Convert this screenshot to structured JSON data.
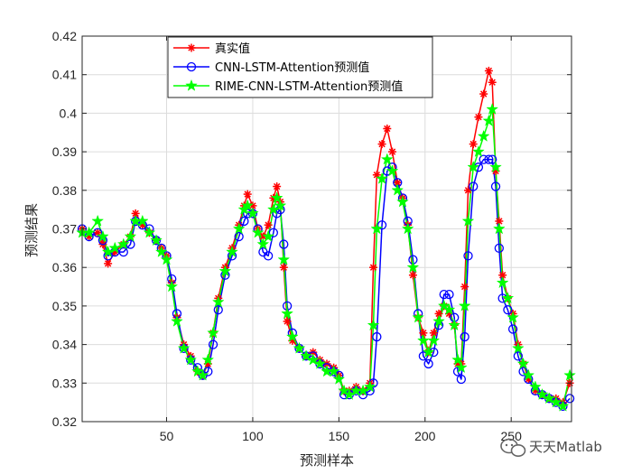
{
  "chart_data": {
    "type": "line",
    "title": "",
    "xlabel": "预测样本",
    "ylabel": "预测结果",
    "xlim": [
      1,
      285
    ],
    "ylim": [
      0.32,
      0.42
    ],
    "xticks": [
      50,
      100,
      150,
      200,
      250
    ],
    "yticks": [
      0.32,
      0.33,
      0.34,
      0.35,
      0.36,
      0.37,
      0.38,
      0.39,
      0.4,
      0.41,
      0.42
    ],
    "grid": true,
    "legend_position": "top-center",
    "series": [
      {
        "name": "真实值",
        "color": "#ff0000",
        "marker": "asterisk",
        "points": [
          [
            1,
            0.37
          ],
          [
            5,
            0.368
          ],
          [
            10,
            0.369
          ],
          [
            13,
            0.366
          ],
          [
            16,
            0.361
          ],
          [
            20,
            0.364
          ],
          [
            25,
            0.366
          ],
          [
            29,
            0.368
          ],
          [
            32,
            0.374
          ],
          [
            36,
            0.371
          ],
          [
            40,
            0.369
          ],
          [
            44,
            0.367
          ],
          [
            47,
            0.365
          ],
          [
            50,
            0.363
          ],
          [
            53,
            0.356
          ],
          [
            56,
            0.347
          ],
          [
            60,
            0.34
          ],
          [
            64,
            0.337
          ],
          [
            68,
            0.333
          ],
          [
            71,
            0.332
          ],
          [
            74,
            0.335
          ],
          [
            77,
            0.343
          ],
          [
            80,
            0.352
          ],
          [
            84,
            0.36
          ],
          [
            88,
            0.365
          ],
          [
            92,
            0.371
          ],
          [
            95,
            0.376
          ],
          [
            97,
            0.379
          ],
          [
            100,
            0.376
          ],
          [
            103,
            0.37
          ],
          [
            106,
            0.368
          ],
          [
            109,
            0.371
          ],
          [
            112,
            0.378
          ],
          [
            114,
            0.381
          ],
          [
            116,
            0.377
          ],
          [
            118,
            0.36
          ],
          [
            120,
            0.346
          ],
          [
            123,
            0.341
          ],
          [
            127,
            0.339
          ],
          [
            131,
            0.337
          ],
          [
            135,
            0.338
          ],
          [
            139,
            0.336
          ],
          [
            143,
            0.335
          ],
          [
            147,
            0.334
          ],
          [
            150,
            0.332
          ],
          [
            153,
            0.328
          ],
          [
            156,
            0.328
          ],
          [
            160,
            0.329
          ],
          [
            164,
            0.328
          ],
          [
            168,
            0.33
          ],
          [
            170,
            0.36
          ],
          [
            172,
            0.384
          ],
          [
            175,
            0.392
          ],
          [
            178,
            0.396
          ],
          [
            181,
            0.39
          ],
          [
            184,
            0.382
          ],
          [
            187,
            0.378
          ],
          [
            190,
            0.371
          ],
          [
            193,
            0.358
          ],
          [
            196,
            0.347
          ],
          [
            199,
            0.343
          ],
          [
            202,
            0.338
          ],
          [
            205,
            0.343
          ],
          [
            208,
            0.348
          ],
          [
            211,
            0.35
          ],
          [
            214,
            0.348
          ],
          [
            217,
            0.345
          ],
          [
            219,
            0.335
          ],
          [
            221,
            0.335
          ],
          [
            223,
            0.355
          ],
          [
            225,
            0.38
          ],
          [
            228,
            0.392
          ],
          [
            231,
            0.399
          ],
          [
            234,
            0.405
          ],
          [
            237,
            0.411
          ],
          [
            239,
            0.408
          ],
          [
            241,
            0.385
          ],
          [
            243,
            0.372
          ],
          [
            245,
            0.358
          ],
          [
            248,
            0.352
          ],
          [
            251,
            0.348
          ],
          [
            254,
            0.34
          ],
          [
            257,
            0.335
          ],
          [
            260,
            0.331
          ],
          [
            264,
            0.328
          ],
          [
            268,
            0.327
          ],
          [
            272,
            0.326
          ],
          [
            276,
            0.326
          ],
          [
            280,
            0.325
          ],
          [
            284,
            0.33
          ]
        ]
      },
      {
        "name": "CNN-LSTM-Attention预测值",
        "color": "#0000ff",
        "marker": "circle",
        "points": [
          [
            1,
            0.37
          ],
          [
            5,
            0.368
          ],
          [
            10,
            0.369
          ],
          [
            13,
            0.367
          ],
          [
            16,
            0.363
          ],
          [
            20,
            0.364
          ],
          [
            25,
            0.364
          ],
          [
            29,
            0.366
          ],
          [
            32,
            0.372
          ],
          [
            36,
            0.371
          ],
          [
            40,
            0.37
          ],
          [
            44,
            0.367
          ],
          [
            47,
            0.365
          ],
          [
            50,
            0.363
          ],
          [
            53,
            0.357
          ],
          [
            56,
            0.348
          ],
          [
            60,
            0.339
          ],
          [
            64,
            0.336
          ],
          [
            68,
            0.334
          ],
          [
            71,
            0.332
          ],
          [
            74,
            0.333
          ],
          [
            77,
            0.34
          ],
          [
            80,
            0.349
          ],
          [
            84,
            0.358
          ],
          [
            88,
            0.363
          ],
          [
            92,
            0.368
          ],
          [
            95,
            0.372
          ],
          [
            97,
            0.374
          ],
          [
            100,
            0.374
          ],
          [
            103,
            0.37
          ],
          [
            106,
            0.364
          ],
          [
            109,
            0.363
          ],
          [
            112,
            0.369
          ],
          [
            114,
            0.374
          ],
          [
            116,
            0.375
          ],
          [
            118,
            0.366
          ],
          [
            120,
            0.35
          ],
          [
            123,
            0.343
          ],
          [
            127,
            0.339
          ],
          [
            131,
            0.337
          ],
          [
            135,
            0.337
          ],
          [
            139,
            0.335
          ],
          [
            143,
            0.334
          ],
          [
            147,
            0.333
          ],
          [
            150,
            0.332
          ],
          [
            153,
            0.327
          ],
          [
            156,
            0.327
          ],
          [
            160,
            0.328
          ],
          [
            164,
            0.327
          ],
          [
            168,
            0.328
          ],
          [
            170,
            0.33
          ],
          [
            172,
            0.342
          ],
          [
            175,
            0.371
          ],
          [
            178,
            0.385
          ],
          [
            181,
            0.386
          ],
          [
            184,
            0.382
          ],
          [
            187,
            0.378
          ],
          [
            190,
            0.372
          ],
          [
            193,
            0.362
          ],
          [
            196,
            0.348
          ],
          [
            199,
            0.337
          ],
          [
            202,
            0.335
          ],
          [
            205,
            0.338
          ],
          [
            208,
            0.345
          ],
          [
            211,
            0.353
          ],
          [
            214,
            0.353
          ],
          [
            217,
            0.347
          ],
          [
            219,
            0.333
          ],
          [
            221,
            0.331
          ],
          [
            223,
            0.342
          ],
          [
            225,
            0.363
          ],
          [
            228,
            0.381
          ],
          [
            231,
            0.386
          ],
          [
            234,
            0.388
          ],
          [
            237,
            0.388
          ],
          [
            239,
            0.388
          ],
          [
            241,
            0.381
          ],
          [
            243,
            0.365
          ],
          [
            245,
            0.352
          ],
          [
            248,
            0.349
          ],
          [
            251,
            0.344
          ],
          [
            254,
            0.337
          ],
          [
            257,
            0.333
          ],
          [
            260,
            0.331
          ],
          [
            264,
            0.328
          ],
          [
            268,
            0.327
          ],
          [
            272,
            0.326
          ],
          [
            276,
            0.325
          ],
          [
            280,
            0.324
          ],
          [
            284,
            0.326
          ]
        ]
      },
      {
        "name": "RIME-CNN-LSTM-Attention预测值",
        "color": "#00ff00",
        "marker": "star",
        "points": [
          [
            1,
            0.369
          ],
          [
            5,
            0.369
          ],
          [
            10,
            0.372
          ],
          [
            13,
            0.368
          ],
          [
            16,
            0.364
          ],
          [
            20,
            0.365
          ],
          [
            25,
            0.366
          ],
          [
            29,
            0.368
          ],
          [
            32,
            0.372
          ],
          [
            36,
            0.372
          ],
          [
            40,
            0.369
          ],
          [
            44,
            0.367
          ],
          [
            47,
            0.364
          ],
          [
            50,
            0.362
          ],
          [
            53,
            0.355
          ],
          [
            56,
            0.346
          ],
          [
            60,
            0.339
          ],
          [
            64,
            0.336
          ],
          [
            68,
            0.333
          ],
          [
            71,
            0.332
          ],
          [
            74,
            0.336
          ],
          [
            77,
            0.343
          ],
          [
            80,
            0.351
          ],
          [
            84,
            0.359
          ],
          [
            88,
            0.364
          ],
          [
            92,
            0.37
          ],
          [
            95,
            0.375
          ],
          [
            97,
            0.376
          ],
          [
            100,
            0.374
          ],
          [
            103,
            0.369
          ],
          [
            106,
            0.366
          ],
          [
            109,
            0.368
          ],
          [
            112,
            0.375
          ],
          [
            114,
            0.378
          ],
          [
            116,
            0.376
          ],
          [
            118,
            0.362
          ],
          [
            120,
            0.348
          ],
          [
            123,
            0.342
          ],
          [
            127,
            0.339
          ],
          [
            131,
            0.337
          ],
          [
            135,
            0.336
          ],
          [
            139,
            0.335
          ],
          [
            143,
            0.333
          ],
          [
            147,
            0.333
          ],
          [
            150,
            0.331
          ],
          [
            153,
            0.328
          ],
          [
            156,
            0.327
          ],
          [
            160,
            0.328
          ],
          [
            164,
            0.328
          ],
          [
            168,
            0.329
          ],
          [
            170,
            0.345
          ],
          [
            172,
            0.37
          ],
          [
            175,
            0.383
          ],
          [
            178,
            0.388
          ],
          [
            181,
            0.385
          ],
          [
            184,
            0.38
          ],
          [
            187,
            0.377
          ],
          [
            190,
            0.37
          ],
          [
            193,
            0.36
          ],
          [
            196,
            0.347
          ],
          [
            199,
            0.341
          ],
          [
            202,
            0.338
          ],
          [
            205,
            0.341
          ],
          [
            208,
            0.346
          ],
          [
            211,
            0.35
          ],
          [
            214,
            0.349
          ],
          [
            217,
            0.345
          ],
          [
            219,
            0.336
          ],
          [
            221,
            0.334
          ],
          [
            223,
            0.35
          ],
          [
            225,
            0.372
          ],
          [
            228,
            0.386
          ],
          [
            231,
            0.39
          ],
          [
            234,
            0.394
          ],
          [
            237,
            0.398
          ],
          [
            239,
            0.401
          ],
          [
            241,
            0.386
          ],
          [
            243,
            0.37
          ],
          [
            245,
            0.356
          ],
          [
            248,
            0.352
          ],
          [
            251,
            0.347
          ],
          [
            254,
            0.339
          ],
          [
            257,
            0.335
          ],
          [
            260,
            0.332
          ],
          [
            264,
            0.329
          ],
          [
            268,
            0.327
          ],
          [
            272,
            0.326
          ],
          [
            276,
            0.325
          ],
          [
            280,
            0.324
          ],
          [
            284,
            0.332
          ]
        ]
      }
    ]
  },
  "watermark": {
    "text": "天天Matlab",
    "icon": "wechat-logo-icon"
  }
}
